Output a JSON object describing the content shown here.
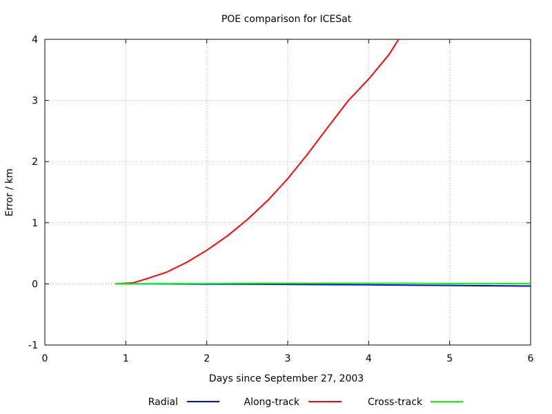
{
  "chart_data": {
    "type": "line",
    "title": "POE comparison for ICESat",
    "xlabel": "Days since September 27, 2003",
    "ylabel": "Error / km",
    "xlim": [
      0,
      6
    ],
    "ylim": [
      -1,
      4
    ],
    "xticks": [
      "0",
      "1",
      "2",
      "3",
      "4",
      "5",
      "6"
    ],
    "yticks": [
      "-1",
      "0",
      "1",
      "2",
      "3",
      "4"
    ],
    "grid": true,
    "legend_position": "bottom",
    "series": [
      {
        "name": "Radial",
        "color": "#0000ff",
        "x": [
          0.87,
          1.0,
          1.5,
          2.0,
          2.5,
          3.0,
          3.5,
          4.0,
          4.5,
          5.0,
          5.5,
          6.0
        ],
        "y": [
          0.0,
          0.0,
          0.0,
          -0.003,
          -0.005,
          -0.008,
          -0.012,
          -0.016,
          -0.02,
          -0.025,
          -0.03,
          -0.035
        ]
      },
      {
        "name": "Along-track",
        "color": "#ff0000",
        "x": [
          0.87,
          1.0,
          1.1,
          1.25,
          1.5,
          1.75,
          2.0,
          2.25,
          2.5,
          2.75,
          3.0,
          3.25,
          3.5,
          3.75,
          4.0,
          4.25,
          4.37
        ],
        "y": [
          0.0,
          0.01,
          0.02,
          0.08,
          0.19,
          0.35,
          0.55,
          0.78,
          1.05,
          1.36,
          1.72,
          2.13,
          2.57,
          3.0,
          3.35,
          3.75,
          4.0
        ]
      },
      {
        "name": "Cross-track",
        "color": "#00ff00",
        "x": [
          0.87,
          1.0,
          1.5,
          2.0,
          2.5,
          3.0,
          3.5,
          4.0,
          4.5,
          5.0,
          5.5,
          6.0
        ],
        "y": [
          0.0,
          0.0,
          0.005,
          0.005,
          0.01,
          0.01,
          0.01,
          0.01,
          0.01,
          0.005,
          0.005,
          0.005
        ]
      }
    ]
  }
}
